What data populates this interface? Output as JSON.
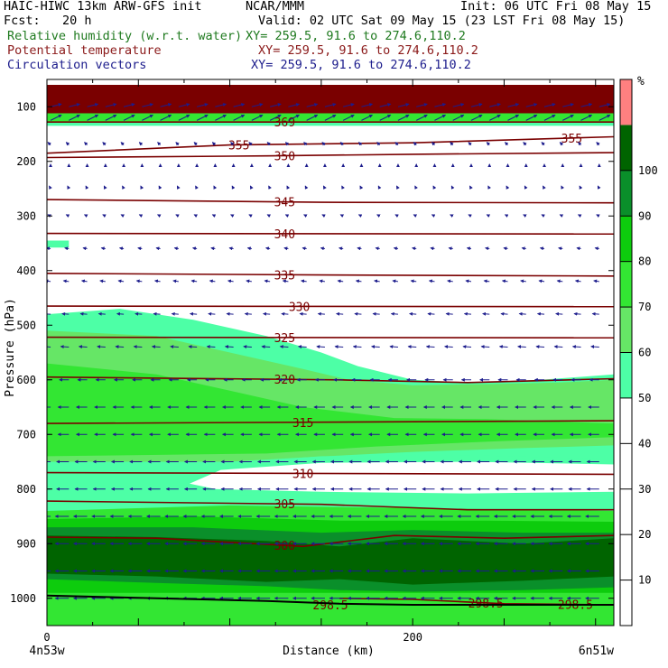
{
  "header": {
    "title": "HAIC-HIWC 13km ARW-GFS init",
    "org": "NCAR/MMM",
    "init": "Init: 06 UTC Fri 08 May 15",
    "fcst": "Fcst:   20 h",
    "valid": "Valid: 02 UTC Sat 09 May 15 (23 LST Fri 08 May 15)",
    "fields": [
      {
        "label": "Relative humidity (w.r.t. water)",
        "xy": "XY= 259.5, 91.6 to 274.6,110.2",
        "color": "#1f7a1f"
      },
      {
        "label": "Potential temperature",
        "xy": "XY= 259.5, 91.6 to 274.6,110.2",
        "color": "#8b1a1a"
      },
      {
        "label": "Circulation vectors",
        "xy": "XY= 259.5, 91.6 to 274.6,110.2",
        "color": "#1c1c8c"
      }
    ]
  },
  "chart_data": {
    "type": "heatmap",
    "xlabel": "Distance (km)",
    "ylabel": "Pressure (hPa)",
    "xlim": [
      0,
      310
    ],
    "ylim": [
      1050,
      50
    ],
    "x_ticks": [
      {
        "value": 0,
        "label": "0"
      },
      {
        "value": 200,
        "label": "200"
      }
    ],
    "y_ticks": [
      100,
      200,
      300,
      400,
      500,
      600,
      700,
      800,
      900,
      1000
    ],
    "left_endpoint": "4n53w",
    "right_endpoint": "6n51w",
    "colorbar": {
      "unit": "%",
      "ticks": [
        10,
        20,
        30,
        40,
        50,
        60,
        70,
        80,
        90,
        100
      ],
      "bands": [
        {
          "min": 0,
          "max": 50,
          "color": "#ffffff"
        },
        {
          "min": 50,
          "max": 60,
          "color": "#4dffa6"
        },
        {
          "min": 60,
          "max": 70,
          "color": "#66e666"
        },
        {
          "min": 70,
          "max": 80,
          "color": "#33e633"
        },
        {
          "min": 80,
          "max": 90,
          "color": "#0dcc0d"
        },
        {
          "min": 90,
          "max": 100,
          "color": "#0a8f2a"
        },
        {
          "min": 100,
          "max": 110,
          "color": "#006400"
        },
        {
          "min": 110,
          "max": 120,
          "color": "#ff8080"
        }
      ]
    },
    "rh_regions": [
      {
        "level": "dry",
        "color": "#7a0000",
        "poly": [
          [
            0,
            60
          ],
          [
            310,
            60
          ],
          [
            310,
            112
          ],
          [
            0,
            112
          ]
        ]
      },
      {
        "level": "moist",
        "color": "#33e633",
        "poly": [
          [
            0,
            112
          ],
          [
            310,
            112
          ],
          [
            310,
            128
          ],
          [
            0,
            128
          ]
        ]
      },
      {
        "level": "moist",
        "color": "#4dffa6",
        "poly": [
          [
            0,
            128
          ],
          [
            310,
            128
          ],
          [
            310,
            135
          ],
          [
            0,
            135
          ]
        ]
      },
      {
        "level": 50,
        "color": "#4dffa6",
        "poly": [
          [
            0,
            480
          ],
          [
            40,
            470
          ],
          [
            80,
            490
          ],
          [
            120,
            520
          ],
          [
            150,
            550
          ],
          [
            170,
            575
          ],
          [
            200,
            600
          ],
          [
            230,
            605
          ],
          [
            270,
            600
          ],
          [
            310,
            590
          ],
          [
            310,
            1050
          ],
          [
            0,
            1050
          ]
        ]
      },
      {
        "level": 60,
        "color": "#66e666",
        "poly": [
          [
            0,
            510
          ],
          [
            60,
            520
          ],
          [
            100,
            550
          ],
          [
            140,
            580
          ],
          [
            165,
            600
          ],
          [
            200,
            610
          ],
          [
            240,
            608
          ],
          [
            280,
            605
          ],
          [
            310,
            600
          ],
          [
            310,
            720
          ],
          [
            260,
            725
          ],
          [
            200,
            732
          ],
          [
            140,
            742
          ],
          [
            100,
            750
          ],
          [
            0,
            750
          ]
        ]
      },
      {
        "level": 70,
        "color": "#33e633",
        "poly": [
          [
            0,
            570
          ],
          [
            60,
            590
          ],
          [
            100,
            620
          ],
          [
            140,
            650
          ],
          [
            190,
            670
          ],
          [
            240,
            672
          ],
          [
            310,
            680
          ],
          [
            310,
            705
          ],
          [
            250,
            712
          ],
          [
            180,
            722
          ],
          [
            120,
            735
          ],
          [
            0,
            740
          ]
        ]
      },
      {
        "level": 50,
        "color": "#4dffa6",
        "poly": [
          [
            70,
            785
          ],
          [
            90,
            755
          ],
          [
            150,
            740
          ],
          [
            230,
            738
          ],
          [
            310,
            745
          ],
          [
            310,
            815
          ],
          [
            230,
            822
          ],
          [
            150,
            818
          ],
          [
            90,
            808
          ]
        ]
      },
      {
        "level": 30,
        "color": "#ffffff",
        "poly": [
          [
            78,
            790
          ],
          [
            95,
            765
          ],
          [
            150,
            752
          ],
          [
            230,
            750
          ],
          [
            310,
            755
          ],
          [
            310,
            805
          ],
          [
            230,
            808
          ],
          [
            150,
            805
          ],
          [
            92,
            800
          ]
        ]
      },
      {
        "level": 70,
        "color": "#33e633",
        "poly": [
          [
            0,
            840
          ],
          [
            100,
            830
          ],
          [
            200,
            835
          ],
          [
            310,
            840
          ],
          [
            310,
            1050
          ],
          [
            0,
            1050
          ]
        ]
      },
      {
        "level": 80,
        "color": "#0dcc0d",
        "poly": [
          [
            0,
            855
          ],
          [
            80,
            850
          ],
          [
            160,
            858
          ],
          [
            240,
            858
          ],
          [
            310,
            860
          ],
          [
            310,
            1050
          ],
          [
            0,
            1050
          ]
        ]
      },
      {
        "level": 90,
        "color": "#0a8f2a",
        "poly": [
          [
            0,
            870
          ],
          [
            80,
            870
          ],
          [
            150,
            880
          ],
          [
            200,
            875
          ],
          [
            260,
            880
          ],
          [
            310,
            880
          ],
          [
            310,
            1050
          ],
          [
            0,
            1050
          ]
        ]
      },
      {
        "level": 100,
        "color": "#006400",
        "poly": [
          [
            0,
            885
          ],
          [
            60,
            888
          ],
          [
            120,
            895
          ],
          [
            160,
            905
          ],
          [
            200,
            890
          ],
          [
            260,
            900
          ],
          [
            310,
            890
          ],
          [
            310,
            960
          ],
          [
            260,
            968
          ],
          [
            200,
            975
          ],
          [
            160,
            965
          ],
          [
            120,
            970
          ],
          [
            60,
            960
          ],
          [
            0,
            955
          ]
        ]
      },
      {
        "level": 80,
        "color": "#0dcc0d",
        "poly": [
          [
            0,
            965
          ],
          [
            60,
            972
          ],
          [
            120,
            978
          ],
          [
            160,
            985
          ],
          [
            200,
            988
          ],
          [
            260,
            985
          ],
          [
            310,
            980
          ],
          [
            310,
            1050
          ],
          [
            0,
            1050
          ]
        ]
      },
      {
        "level": 70,
        "color": "#33e633",
        "poly": [
          [
            0,
            990
          ],
          [
            310,
            990
          ],
          [
            310,
            1050
          ],
          [
            0,
            1050
          ]
        ]
      },
      {
        "level": 50,
        "color": "#4dffa6",
        "poly": [
          [
            0,
            345
          ],
          [
            12,
            345
          ],
          [
            12,
            358
          ],
          [
            0,
            358
          ]
        ]
      }
    ],
    "theta_contours": [
      {
        "value": 369,
        "label": "369",
        "label_x": 130,
        "points": [
          [
            0,
            128
          ],
          [
            310,
            128
          ]
        ]
      },
      {
        "value": 355,
        "label": "355",
        "label_x": 105,
        "label2": "355",
        "label2_x": 287,
        "points": [
          [
            0,
            185
          ],
          [
            100,
            170
          ],
          [
            200,
            166
          ],
          [
            310,
            155
          ]
        ]
      },
      {
        "value": 350,
        "label": "350",
        "label_x": 130,
        "points": [
          [
            0,
            193
          ],
          [
            120,
            190
          ],
          [
            200,
            187
          ],
          [
            310,
            184
          ]
        ]
      },
      {
        "value": 345,
        "label": "345",
        "label_x": 130,
        "points": [
          [
            0,
            270
          ],
          [
            150,
            275
          ],
          [
            310,
            276
          ]
        ]
      },
      {
        "value": 340,
        "label": "340",
        "label_x": 130,
        "points": [
          [
            0,
            332
          ],
          [
            310,
            333
          ]
        ]
      },
      {
        "value": 335,
        "label": "335",
        "label_x": 130,
        "points": [
          [
            0,
            405
          ],
          [
            150,
            408
          ],
          [
            310,
            410
          ]
        ]
      },
      {
        "value": 330,
        "label": "330",
        "label_x": 138,
        "points": [
          [
            0,
            465
          ],
          [
            310,
            466
          ]
        ]
      },
      {
        "value": 325,
        "label": "325",
        "label_x": 130,
        "points": [
          [
            0,
            522
          ],
          [
            310,
            523
          ]
        ]
      },
      {
        "value": 320,
        "label": "320",
        "label_x": 130,
        "points": [
          [
            0,
            595
          ],
          [
            160,
            600
          ],
          [
            230,
            605
          ],
          [
            310,
            598
          ]
        ]
      },
      {
        "value": 315,
        "label": "315",
        "label_x": 140,
        "points": [
          [
            0,
            680
          ],
          [
            310,
            675
          ]
        ]
      },
      {
        "value": 310,
        "label": "310",
        "label_x": 140,
        "points": [
          [
            0,
            770
          ],
          [
            310,
            773
          ]
        ]
      },
      {
        "value": 305,
        "label": "305",
        "label_x": 130,
        "points": [
          [
            0,
            822
          ],
          [
            150,
            828
          ],
          [
            230,
            838
          ],
          [
            310,
            838
          ]
        ]
      },
      {
        "value": 300,
        "label": "300",
        "label_x": 130,
        "points": [
          [
            0,
            888
          ],
          [
            60,
            890
          ],
          [
            140,
            905
          ],
          [
            190,
            885
          ],
          [
            250,
            890
          ],
          [
            310,
            885
          ]
        ]
      },
      {
        "value": 298.5,
        "label": "298.5",
        "label_x": 155,
        "label2": "298.5",
        "label2_x": 240,
        "label3": "298.5",
        "label3_x": 289,
        "points": [
          [
            160,
            1000
          ],
          [
            200,
            1002
          ],
          [
            250,
            1010
          ],
          [
            310,
            1012
          ]
        ]
      }
    ],
    "vectors": {
      "layers": [
        {
          "p": 100,
          "u": 4,
          "w": 1
        },
        {
          "p": 125,
          "u": 4,
          "w": 2
        },
        {
          "p": 170,
          "u": -1,
          "w": 1
        },
        {
          "p": 210,
          "u": 0,
          "w": 1
        },
        {
          "p": 250,
          "u": -0.5,
          "w": 1
        },
        {
          "p": 300,
          "u": -1,
          "w": 0.5
        },
        {
          "p": 360,
          "u": -1.5,
          "w": 0.3
        },
        {
          "p": 420,
          "u": -2,
          "w": 0.3
        },
        {
          "p": 480,
          "u": -2.5,
          "w": 0.2
        },
        {
          "p": 540,
          "u": -3,
          "w": 0.2
        },
        {
          "p": 600,
          "u": -3.5,
          "w": 0
        },
        {
          "p": 650,
          "u": -4,
          "w": 0
        },
        {
          "p": 700,
          "u": -4,
          "w": 0
        },
        {
          "p": 750,
          "u": -4.5,
          "w": 0
        },
        {
          "p": 800,
          "u": -4.5,
          "w": 0
        },
        {
          "p": 850,
          "u": -5,
          "w": 0
        },
        {
          "p": 900,
          "u": -5,
          "w": 0
        },
        {
          "p": 950,
          "u": -5,
          "w": 0
        },
        {
          "p": 1000,
          "u": -5,
          "w": 0
        }
      ],
      "x_spacing": 10
    },
    "terrain": [
      [
        0,
        995
      ],
      [
        60,
        1000
      ],
      [
        120,
        1005
      ],
      [
        160,
        1010
      ],
      [
        200,
        1012
      ],
      [
        260,
        1012
      ],
      [
        310,
        1012
      ]
    ]
  }
}
